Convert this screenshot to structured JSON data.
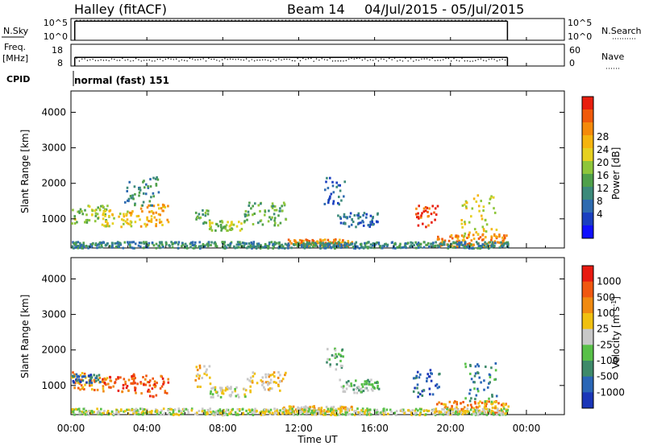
{
  "header": {
    "station": "Halley (fitACF)",
    "beam": "Beam 14",
    "date_range": "04/Jul/2015 - 05/Jul/2015"
  },
  "chart_data": [
    {
      "type": "line",
      "panel": "noise-sky-search",
      "left_label": "N.Sky",
      "right_label": "N.Search",
      "left_ticks": [
        "10^5",
        "10^0"
      ],
      "right_ticks": [
        "10^5",
        "10^0"
      ],
      "x_range": [
        "00:00",
        "23:00"
      ],
      "series": [
        {
          "name": "N.Sky",
          "style": "solid",
          "level": 0.88
        },
        {
          "name": "N.Search",
          "style": "dotted",
          "level": 0.88
        }
      ]
    },
    {
      "type": "line",
      "panel": "frequency-nave",
      "left_label": "Freq. [MHz]",
      "right_label": "Nave",
      "left_ticks": [
        "18",
        "8"
      ],
      "right_ticks": [
        "60",
        "0"
      ],
      "series": [
        {
          "name": "Freq.",
          "style": "solid",
          "value": 12
        },
        {
          "name": "Nave",
          "style": "dotted",
          "value": 30
        }
      ]
    },
    {
      "type": "table",
      "panel": "cpid",
      "label": "CPID",
      "value": "normal (fast) 151"
    },
    {
      "type": "heatmap",
      "panel": "power",
      "ylabel": "Slant Range [km]",
      "yticks": [
        1000,
        2000,
        3000,
        4000
      ],
      "ylim": [
        180,
        4600
      ],
      "colorbar": {
        "label": "Power [dB]",
        "ticks": [
          "4",
          "8",
          "12",
          "16",
          "20",
          "24",
          "28"
        ],
        "colors": [
          "#1010ff",
          "#1a3fc0",
          "#2e6bb0",
          "#3c8a7a",
          "#4fa04a",
          "#8ec63a",
          "#e6d020",
          "#f5b40f",
          "#f58a0a",
          "#f05a0a",
          "#e81e0e"
        ]
      },
      "regions": [
        {
          "t0": 0.0,
          "t1": 1.9,
          "r0": 900,
          "r1": 1400,
          "c": 5
        },
        {
          "t0": 1.6,
          "t1": 3.2,
          "r0": 800,
          "r1": 1300,
          "c": 6
        },
        {
          "t0": 3.0,
          "t1": 5.1,
          "r0": 800,
          "r1": 1500,
          "c": 7
        },
        {
          "t0": 2.8,
          "t1": 4.6,
          "r0": 1400,
          "r1": 2200,
          "c": 3
        },
        {
          "t0": 6.5,
          "t1": 7.2,
          "r0": 900,
          "r1": 1300,
          "c": 4
        },
        {
          "t0": 7.2,
          "t1": 9.0,
          "r0": 700,
          "r1": 1000,
          "c": 5
        },
        {
          "t0": 9.0,
          "t1": 11.3,
          "r0": 850,
          "r1": 1500,
          "c": 4
        },
        {
          "t0": 11.4,
          "t1": 14.8,
          "r0": 250,
          "r1": 450,
          "c": 8
        },
        {
          "t0": 13.3,
          "t1": 14.4,
          "r0": 1400,
          "r1": 2200,
          "c": 2
        },
        {
          "t0": 14.0,
          "t1": 16.2,
          "r0": 800,
          "r1": 1200,
          "c": 2
        },
        {
          "t0": 18.1,
          "t1": 19.3,
          "r0": 800,
          "r1": 1400,
          "c": 9
        },
        {
          "t0": 19.2,
          "t1": 23.0,
          "r0": 250,
          "r1": 600,
          "c": 8
        },
        {
          "t0": 20.5,
          "t1": 22.4,
          "r0": 500,
          "r1": 1700,
          "c": 6
        },
        {
          "t0": 0.0,
          "t1": 23.0,
          "r0": 200,
          "r1": 380,
          "c": 3
        }
      ]
    },
    {
      "type": "heatmap",
      "panel": "velocity",
      "ylabel": "Slant Range [km]",
      "yticks": [
        1000,
        2000,
        3000,
        4000
      ],
      "ylim": [
        180,
        4600
      ],
      "xticks": [
        "00:00",
        "04:00",
        "08:00",
        "12:00",
        "16:00",
        "20:00",
        "00:00"
      ],
      "xlabel": "Time UT",
      "colorbar": {
        "label": "Velocity [m s-1]",
        "ticks": [
          "1000",
          "500",
          "100",
          "25",
          "-25",
          "-100",
          "-500",
          "-1000"
        ],
        "colors": [
          "#1a36b8",
          "#2a66b6",
          "#3e8a6a",
          "#58c048",
          "#c8c8c8",
          "#f0c010",
          "#f08a10",
          "#f05810",
          "#e81a10"
        ]
      },
      "regions": [
        {
          "t0": 0.0,
          "t1": 1.9,
          "r0": 900,
          "r1": 1400,
          "c": 6
        },
        {
          "t0": 1.6,
          "t1": 3.4,
          "r0": 800,
          "r1": 1300,
          "c": 7
        },
        {
          "t0": 3.2,
          "t1": 5.1,
          "r0": 700,
          "r1": 1400,
          "c": 7
        },
        {
          "t0": 0.0,
          "t1": 1.5,
          "r0": 1100,
          "r1": 1350,
          "c": 1
        },
        {
          "t0": 6.5,
          "t1": 7.3,
          "r0": 900,
          "r1": 1600,
          "c": 5
        },
        {
          "t0": 7.3,
          "t1": 9.2,
          "r0": 700,
          "r1": 1000,
          "c": 4
        },
        {
          "t0": 9.2,
          "t1": 11.3,
          "r0": 850,
          "r1": 1450,
          "c": 5
        },
        {
          "t0": 11.0,
          "t1": 14.8,
          "r0": 250,
          "r1": 450,
          "c": 5
        },
        {
          "t0": 13.3,
          "t1": 14.3,
          "r0": 1400,
          "r1": 2100,
          "c": 3
        },
        {
          "t0": 14.0,
          "t1": 16.2,
          "r0": 800,
          "r1": 1200,
          "c": 3
        },
        {
          "t0": 18.0,
          "t1": 19.4,
          "r0": 700,
          "r1": 1500,
          "c": 1
        },
        {
          "t0": 19.2,
          "t1": 23.0,
          "r0": 250,
          "r1": 600,
          "c": 6
        },
        {
          "t0": 20.6,
          "t1": 22.4,
          "r0": 500,
          "r1": 1700,
          "c": 2
        },
        {
          "t0": 0.0,
          "t1": 23.0,
          "r0": 200,
          "r1": 380,
          "c": 4
        }
      ]
    }
  ]
}
